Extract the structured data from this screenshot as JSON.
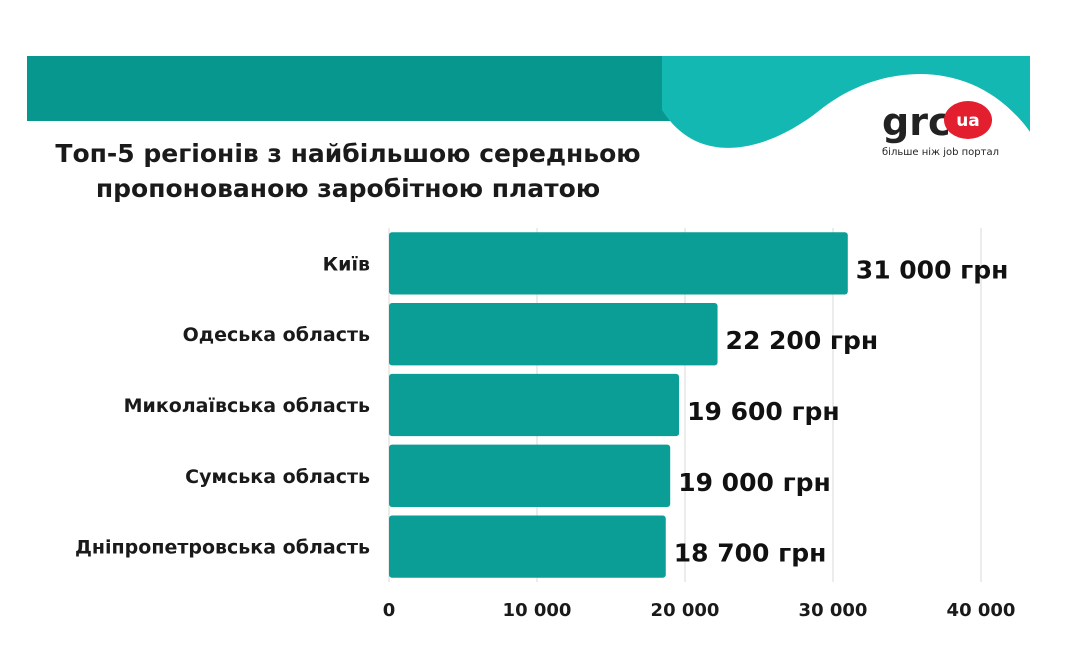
{
  "colors": {
    "bar": "#0a9e96",
    "header_dark": "#08978f",
    "header_light": "#13b8b2",
    "logo_badge": "#e31e2f",
    "text": "#1a1a1a",
    "grid": "#d9d9d9"
  },
  "logo": {
    "brand": "grc",
    "badge": "ua",
    "tagline": "більше ніж job портал"
  },
  "chart_data": {
    "type": "bar",
    "orientation": "horizontal",
    "title_lines": [
      "Топ-5 регіонів з найбільшою середньою",
      "пропонованою заробітною платою"
    ],
    "categories": [
      "Київ",
      "Одеська область",
      "Миколаївська область",
      "Сумська область",
      "Дніпропетровська область"
    ],
    "values": [
      31000,
      22200,
      19600,
      19000,
      18700
    ],
    "value_labels": [
      "31 000 грн",
      "22 200 грн",
      "19 600 грн",
      "19 000 грн",
      "18 700 грн"
    ],
    "xlim": [
      0,
      40000
    ],
    "xticks": [
      0,
      10000,
      20000,
      30000,
      40000
    ],
    "xtick_labels": [
      "0",
      "10 000",
      "20 000",
      "30 000",
      "40 000"
    ],
    "grid": true,
    "legend": "none"
  }
}
